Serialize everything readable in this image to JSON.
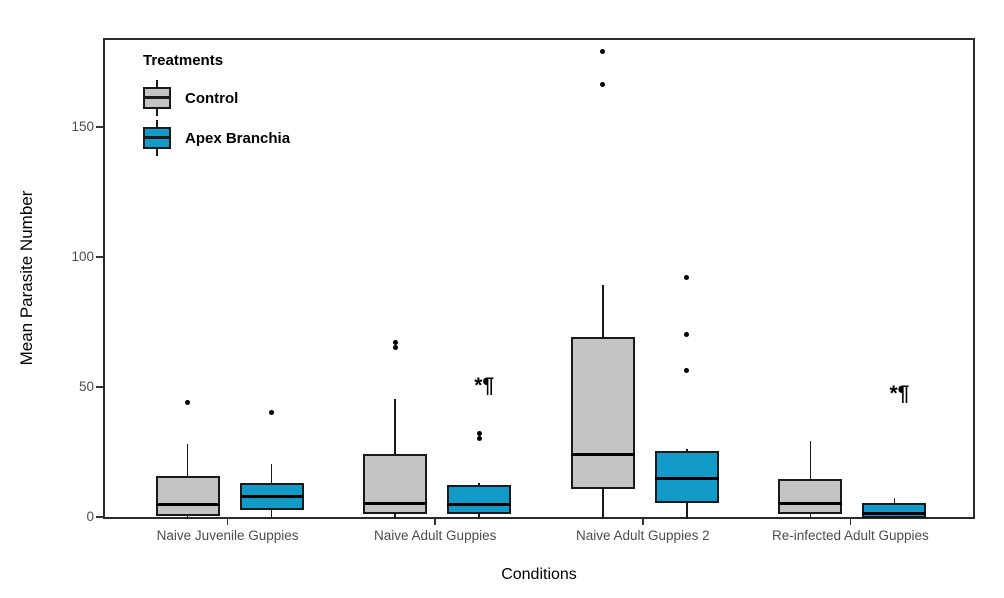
{
  "chart_data": {
    "type": "boxplot",
    "title": "",
    "xlabel": "Conditions",
    "ylabel": "Mean Parasite Number",
    "legend_title": "Treatments",
    "legend_position": "inside-top-left",
    "grid": false,
    "categories": [
      "Naive Juvenile Guppies",
      "Naive Adult Guppies",
      "Naive Adult Guppies 2",
      "Re-infected Adult Guppies"
    ],
    "y_ticks": [
      0,
      50,
      100,
      150
    ],
    "ylim": [
      -1,
      184
    ],
    "series": [
      {
        "name": "Control",
        "color": "#C4C4C4",
        "boxes": [
          {
            "whisker_low": 0,
            "q1": 1,
            "median": 5.5,
            "q3": 16.5,
            "whisker_high": 29,
            "outliers": [
              45
            ]
          },
          {
            "whisker_low": 0,
            "q1": 2,
            "median": 6,
            "q3": 25,
            "whisker_high": 46,
            "outliers": [
              66,
              68
            ]
          },
          {
            "whisker_low": 0,
            "q1": 11.5,
            "median": 25,
            "q3": 70,
            "whisker_high": 90,
            "outliers": [
              167,
              180
            ]
          },
          {
            "whisker_low": 0,
            "q1": 2,
            "median": 6,
            "q3": 15.5,
            "whisker_high": 30,
            "outliers": []
          }
        ]
      },
      {
        "name": "Apex Branchia",
        "color": "#129AC8",
        "boxes": [
          {
            "whisker_low": 0,
            "q1": 3.5,
            "median": 8.5,
            "q3": 14,
            "whisker_high": 21,
            "outliers": [
              41
            ]
          },
          {
            "whisker_low": 0,
            "q1": 2,
            "median": 5.5,
            "q3": 13,
            "whisker_high": 14,
            "outliers": [
              31,
              33
            ]
          },
          {
            "whisker_low": 0,
            "q1": 6,
            "median": 15.5,
            "q3": 26,
            "whisker_high": 27,
            "outliers": [
              57,
              71,
              93
            ]
          },
          {
            "whisker_low": 0,
            "q1": 0.5,
            "median": 2,
            "q3": 6,
            "whisker_high": 8,
            "outliers": []
          }
        ]
      }
    ],
    "annotations": [
      {
        "text": "*¶",
        "category_index": 1,
        "series_index": 1,
        "value": 50
      },
      {
        "text": "*¶",
        "category_index": 3,
        "series_index": 1,
        "value": 47
      }
    ]
  }
}
